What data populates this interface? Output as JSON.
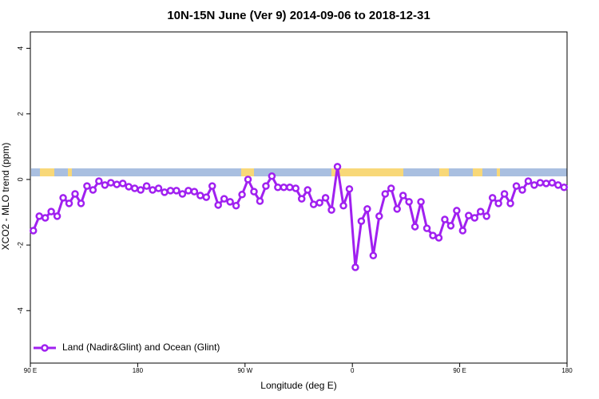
{
  "chart_data": {
    "type": "line",
    "title": "10N-15N June (Ver 9)   2014-09-06 to 2018-12-31",
    "x_label": "Longitude (deg E)",
    "y_label": "XCO2 - MLO trend (ppm)",
    "xlim": [
      90,
      540
    ],
    "ylim": [
      -5.6,
      4.5
    ],
    "xticks": [
      {
        "value": 90,
        "label": "90 E"
      },
      180,
      {
        "value": 270,
        "label": "90 W"
      },
      {
        "value": 360,
        "label": "0"
      },
      {
        "value": 450,
        "label": "90 E"
      },
      {
        "value": 540,
        "label": "180"
      }
    ],
    "yticks": [
      -4,
      -2,
      0,
      2,
      4
    ],
    "legend_position": "bottom-left",
    "x": [
      92.5,
      97.5,
      102.5,
      107.5,
      112.5,
      117.5,
      122.5,
      127.5,
      132.5,
      137.5,
      142.5,
      147.5,
      152.5,
      157.5,
      162.5,
      167.5,
      172.5,
      177.5,
      182.5,
      187.5,
      192.5,
      197.5,
      202.5,
      207.5,
      212.5,
      217.5,
      222.5,
      227.5,
      232.5,
      237.5,
      242.5,
      247.5,
      252.5,
      257.5,
      262.5,
      267.5,
      272.5,
      277.5,
      282.5,
      287.5,
      292.5,
      297.5,
      302.5,
      307.5,
      312.5,
      317.5,
      322.5,
      327.5,
      332.5,
      337.5,
      342.5,
      347.5,
      352.5,
      357.5,
      362.5,
      367.5,
      372.5,
      377.5,
      382.5,
      387.5,
      392.5,
      397.5,
      402.5,
      407.5,
      412.5,
      417.5,
      422.5,
      427.5,
      432.5,
      437.5,
      442.5,
      447.5,
      452.5,
      457.5,
      462.5,
      467.5,
      472.5,
      477.5,
      482.5,
      487.5,
      492.5,
      497.5,
      502.5,
      507.5,
      512.5,
      517.5,
      522.5,
      527.5,
      532.5,
      537.5
    ],
    "series": [
      {
        "name": "Land (Nadir&Glint) and Ocean (Glint)",
        "color": "#a020f0",
        "values": [
          -1.56,
          -1.12,
          -1.17,
          -0.98,
          -1.12,
          -0.56,
          -0.73,
          -0.44,
          -0.73,
          -0.2,
          -0.32,
          -0.05,
          -0.17,
          -0.1,
          -0.15,
          -0.12,
          -0.22,
          -0.27,
          -0.32,
          -0.2,
          -0.32,
          -0.27,
          -0.39,
          -0.34,
          -0.34,
          -0.44,
          -0.34,
          -0.37,
          -0.49,
          -0.54,
          -0.2,
          -0.78,
          -0.59,
          -0.68,
          -0.8,
          -0.46,
          0,
          -0.37,
          -0.66,
          -0.2,
          0.1,
          -0.24,
          -0.24,
          -0.24,
          -0.27,
          -0.59,
          -0.32,
          -0.76,
          -0.71,
          -0.56,
          -0.93,
          0.39,
          -0.8,
          -0.29,
          -2.68,
          -1.27,
          -0.9,
          -2.32,
          -1.12,
          -0.44,
          -0.27,
          -0.9,
          -0.49,
          -0.68,
          -1.44,
          -0.68,
          -1.49,
          -1.71,
          -1.78,
          -1.22,
          -1.41,
          -0.95,
          -1.56,
          -1.1,
          -1.17,
          -0.98,
          -1.12,
          -0.56,
          -0.73,
          -0.44,
          -0.73,
          -0.2,
          -0.32,
          -0.05,
          -0.17,
          -0.1,
          -0.12,
          -0.1,
          -0.17,
          -0.24
        ]
      }
    ]
  }
}
